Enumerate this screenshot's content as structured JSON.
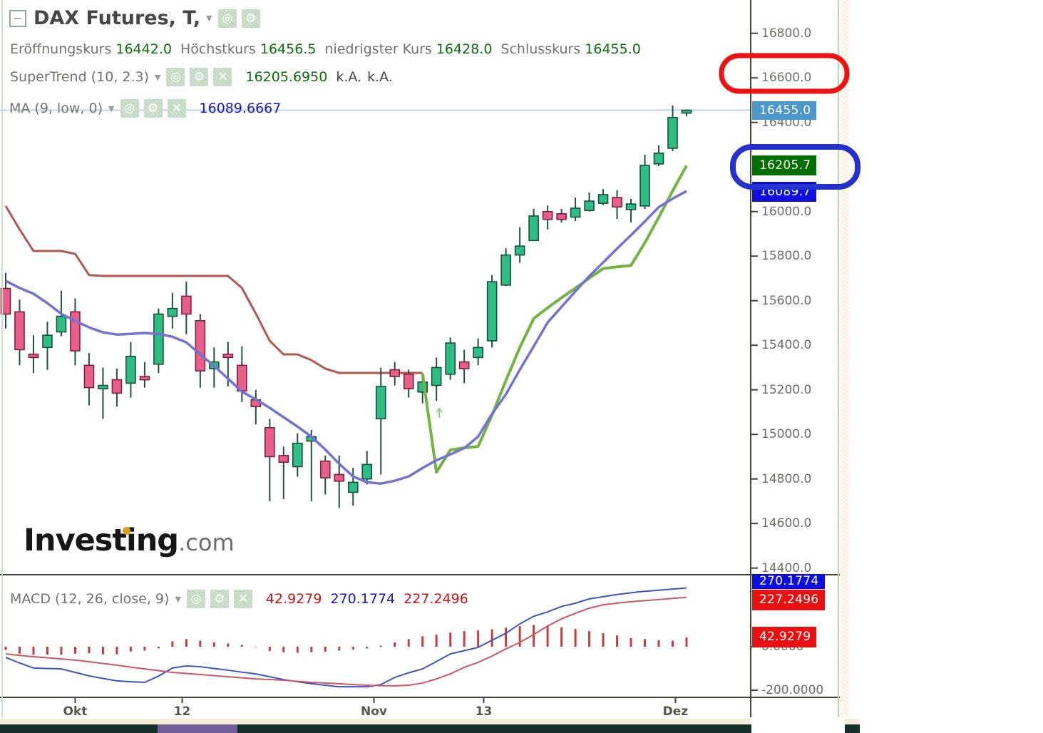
{
  "header": {
    "collapse_icon": "−",
    "title": "DAX Futures, T,",
    "ohlc": {
      "open_label": "Eröffnungskurs",
      "open": "16442.0",
      "high_label": "Höchstkurs",
      "high": "16456.5",
      "low_label": "niedrigster Kurs",
      "low": "16428.0",
      "close_label": "Schlusskurs",
      "close": "16455.0"
    }
  },
  "indicators": {
    "supertrend": {
      "label": "SuperTrend (10, 2.3)",
      "value": "16205.6950",
      "na1": "k.A.",
      "na2": "k.A."
    },
    "ma": {
      "label": "MA (9, low, 0)",
      "value": "16089.6667"
    },
    "macd": {
      "label": "MACD (12, 26, close, 9)",
      "hist_value": "42.9279",
      "macd_value": "270.1774",
      "signal_value": "227.2496"
    }
  },
  "watermark": {
    "brand": "Investing",
    "suffix": ".com"
  },
  "price_axis": {
    "ticks": [
      "16800.0",
      "16600.0",
      "16400.0",
      "16000.0",
      "15800.0",
      "15600.0",
      "15400.0",
      "15200.0",
      "15000.0",
      "14800.0",
      "14600.0",
      "14400.0"
    ],
    "badges": [
      {
        "id": "last",
        "text": "16455.0",
        "value": 16455.0,
        "bg": "#4b96cc"
      },
      {
        "id": "supertrend",
        "text": "16205.7",
        "value": 16205.7,
        "bg": "#017001"
      },
      {
        "id": "ma",
        "text": "16089.7",
        "value": 16089.7,
        "bg": "#0d0de0"
      }
    ]
  },
  "macd_axis": {
    "ticks": [
      {
        "label": "0.0000",
        "value": 0
      },
      {
        "label": "-200.0000",
        "value": -200
      }
    ],
    "badges": [
      {
        "id": "macd",
        "text": "270.1774",
        "value": 270.1774,
        "bg": "#0d0de0"
      },
      {
        "id": "signal",
        "text": "227.2496",
        "value": 227.2496,
        "bg": "#e81010"
      },
      {
        "id": "hist",
        "text": "42.9279",
        "value": 42.9279,
        "bg": "#e81010"
      }
    ]
  },
  "colors": {
    "candle_up_fill": "#2ebd85",
    "candle_up_stroke": "#14503c",
    "candle_down_fill": "#e8608a",
    "candle_down_stroke": "#7e1f3c",
    "wick": "#1c5147",
    "supertrend_bear": "#b2584e",
    "supertrend_bull": "#72b344",
    "ma_line": "#7272d4",
    "last_price_line": "#b7d6ee",
    "macd_line": "#3a55c8",
    "signal_line": "#cf5560",
    "hist_bar": "#c83c3c",
    "axis_line": "#45453a",
    "annotation_red": "#ee1111",
    "annotation_blue": "#2531cf"
  },
  "chart_data": {
    "type": "candlestick",
    "title": "DAX Futures, T (daily) with SuperTrend(10,2.3), MA(9,low) and MACD(12,26,close,9)",
    "price_axis_range": [
      14350,
      16950
    ],
    "macd_axis_range": [
      -230,
      330
    ],
    "last_price_line": 16455.0,
    "candles": [
      [
        15655,
        15725,
        15475,
        15540
      ],
      [
        15550,
        15605,
        15310,
        15380
      ],
      [
        15360,
        15445,
        15275,
        15345
      ],
      [
        15390,
        15505,
        15290,
        15445
      ],
      [
        15460,
        15645,
        15440,
        15530
      ],
      [
        15550,
        15610,
        15310,
        15375
      ],
      [
        15310,
        15365,
        15130,
        15210
      ],
      [
        15205,
        15300,
        15070,
        15220
      ],
      [
        15245,
        15295,
        15125,
        15185
      ],
      [
        15230,
        15415,
        15165,
        15350
      ],
      [
        15260,
        15325,
        15210,
        15245
      ],
      [
        15315,
        15565,
        15275,
        15540
      ],
      [
        15530,
        15635,
        15475,
        15565
      ],
      [
        15620,
        15685,
        15450,
        15540
      ],
      [
        15510,
        15540,
        15210,
        15285
      ],
      [
        15295,
        15390,
        15210,
        15325
      ],
      [
        15360,
        15415,
        15215,
        15345
      ],
      [
        15310,
        15395,
        15145,
        15195
      ],
      [
        15155,
        15200,
        15045,
        15125
      ],
      [
        15030,
        15070,
        14700,
        14900
      ],
      [
        14905,
        14945,
        14710,
        14875
      ],
      [
        14855,
        15005,
        14810,
        14960
      ],
      [
        14970,
        15020,
        14700,
        14990
      ],
      [
        14880,
        14905,
        14730,
        14805
      ],
      [
        14820,
        14905,
        14670,
        14790
      ],
      [
        14740,
        14850,
        14680,
        14785
      ],
      [
        14800,
        14925,
        14775,
        14865
      ],
      [
        15070,
        15300,
        14820,
        15215
      ],
      [
        15290,
        15325,
        15220,
        15260
      ],
      [
        15270,
        15290,
        15165,
        15205
      ],
      [
        15190,
        15270,
        15140,
        15235
      ],
      [
        15220,
        15345,
        15150,
        15300
      ],
      [
        15270,
        15435,
        15245,
        15410
      ],
      [
        15325,
        15380,
        15230,
        15295
      ],
      [
        15345,
        15430,
        15310,
        15390
      ],
      [
        15420,
        15715,
        15390,
        15685
      ],
      [
        15670,
        15835,
        15665,
        15805
      ],
      [
        15805,
        15930,
        15770,
        15845
      ],
      [
        15870,
        16012,
        15868,
        15980
      ],
      [
        16000,
        16028,
        15920,
        15965
      ],
      [
        15990,
        16012,
        15950,
        15965
      ],
      [
        15975,
        16063,
        15957,
        16015
      ],
      [
        16005,
        16085,
        16000,
        16047
      ],
      [
        16037,
        16101,
        16028,
        16076
      ],
      [
        16063,
        16095,
        15967,
        16021
      ],
      [
        16009,
        16057,
        15951,
        16034
      ],
      [
        16025,
        16255,
        16012,
        16207
      ],
      [
        16214,
        16297,
        16204,
        16262
      ],
      [
        16284,
        16476,
        16271,
        16422
      ],
      [
        16442,
        16456.5,
        16428,
        16455
      ]
    ],
    "overlays": {
      "supertrend_bear": {
        "start_index": 0,
        "values": [
          16025,
          15920,
          15823,
          15823,
          15823,
          15810,
          15715,
          15711,
          15711,
          15711,
          15711,
          15711,
          15711,
          15711,
          15711,
          15711,
          15711,
          15657,
          15542,
          15420,
          15359,
          15359,
          15333,
          15295,
          15276,
          15276,
          15276,
          15276,
          15276,
          15276,
          15276
        ]
      },
      "supertrend_bull": {
        "start_index": 30,
        "values": [
          15273,
          14830,
          14930,
          14940,
          14946,
          15086,
          15242,
          15390,
          15520,
          15568,
          15613,
          15656,
          15701,
          15744,
          15752,
          15758,
          15860,
          15974,
          16093,
          16206
        ]
      },
      "ma9_low": {
        "start_index": 0,
        "values": [
          15689,
          15657,
          15631,
          15589,
          15541,
          15509,
          15480,
          15458,
          15448,
          15451,
          15455,
          15451,
          15438,
          15413,
          15359,
          15307,
          15250,
          15192,
          15157,
          15119,
          15077,
          15035,
          14990,
          14932,
          14868,
          14811,
          14785,
          14779,
          14792,
          14811,
          14849,
          14884,
          14910,
          14938,
          14990,
          15092,
          15180,
          15290,
          15395,
          15502,
          15572,
          15642,
          15710,
          15772,
          15834,
          15894,
          15956,
          16020,
          16058,
          16092
        ]
      }
    },
    "buy_signal_marker": {
      "index": 31,
      "price": 14940
    },
    "macd": {
      "histogram": [
        -15,
        -32,
        -37,
        -36,
        -37,
        -32,
        -30,
        -35,
        -35,
        -22,
        -18,
        -8,
        25,
        35,
        28,
        20,
        15,
        8,
        -2,
        -20,
        -25,
        -28,
        -25,
        -23,
        -18,
        -13,
        -8,
        5,
        20,
        35,
        48,
        55,
        65,
        72,
        75,
        80,
        88,
        95,
        100,
        97,
        90,
        82,
        72,
        62,
        52,
        40,
        35,
        30,
        28,
        42.93
      ],
      "macd_line": [
        -49,
        -75,
        -98,
        -100,
        -102,
        -118,
        -134,
        -146,
        -157,
        -161,
        -164,
        -135,
        -98,
        -88,
        -92,
        -100,
        -108,
        -117,
        -125,
        -138,
        -151,
        -161,
        -170,
        -177,
        -184,
        -184,
        -184,
        -174,
        -141,
        -120,
        -102,
        -68,
        -33,
        -18,
        -3,
        30,
        62,
        105,
        140,
        160,
        185,
        200,
        220,
        230,
        240,
        248,
        255,
        260,
        265,
        270.18
      ],
      "signal_line": [
        -33,
        -40,
        -46,
        -51,
        -56,
        -62,
        -69,
        -77,
        -85,
        -94,
        -102,
        -110,
        -118,
        -123,
        -128,
        -133,
        -138,
        -143,
        -148,
        -151,
        -154,
        -159,
        -164,
        -167,
        -170,
        -174,
        -177,
        -179,
        -180,
        -177,
        -167,
        -148,
        -125,
        -95,
        -72,
        -43,
        -10,
        20,
        56,
        95,
        128,
        154,
        177,
        193,
        200,
        207,
        212,
        217,
        222,
        227.25
      ]
    },
    "time_axis": [
      {
        "label": "Okt",
        "index": 5
      },
      {
        "label": "12",
        "index": 12.7
      },
      {
        "label": "Nov",
        "index": 26.5
      },
      {
        "label": "13",
        "index": 34.4
      },
      {
        "label": "Dez",
        "index": 48.2
      }
    ]
  },
  "annotations": [
    {
      "shape": "rounded-ellipse",
      "color": "#ee1111",
      "around": "16600.0 axis label"
    },
    {
      "shape": "rounded-ellipse",
      "color": "#2531cf",
      "around": "16205.7 supertrend badge"
    }
  ]
}
